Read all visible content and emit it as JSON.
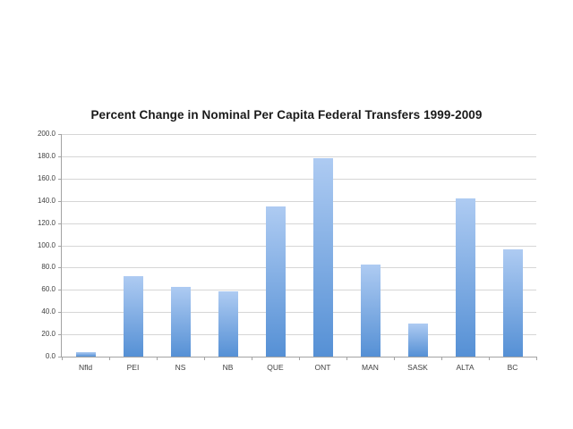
{
  "chart_data": {
    "type": "bar",
    "title": "Percent Change in Nominal Per Capita Federal Transfers 1999-2009",
    "categories": [
      "Nfld",
      "PEI",
      "NS",
      "NB",
      "QUE",
      "ONT",
      "MAN",
      "SASK",
      "ALTA",
      "BC"
    ],
    "values": [
      4,
      72,
      63,
      59,
      135,
      178,
      83,
      30,
      142,
      96
    ],
    "xlabel": "",
    "ylabel": "",
    "ylim": [
      0,
      200
    ],
    "ytick_step": 20,
    "ytick_labels": [
      "0.0",
      "20.0",
      "40.0",
      "60.0",
      "80.0",
      "100.0",
      "120.0",
      "140.0",
      "160.0",
      "180.0",
      "200.0"
    ],
    "grid": "horizontal",
    "legend": "none",
    "colors": {
      "bar_top": "#aecbf2",
      "bar_bottom": "#5590d5",
      "gridline": "#d6d6d6",
      "axis": "#a3a3a3",
      "label": "#3f3f3f",
      "title": "#1a1a1a",
      "background": "#ffffff"
    }
  }
}
